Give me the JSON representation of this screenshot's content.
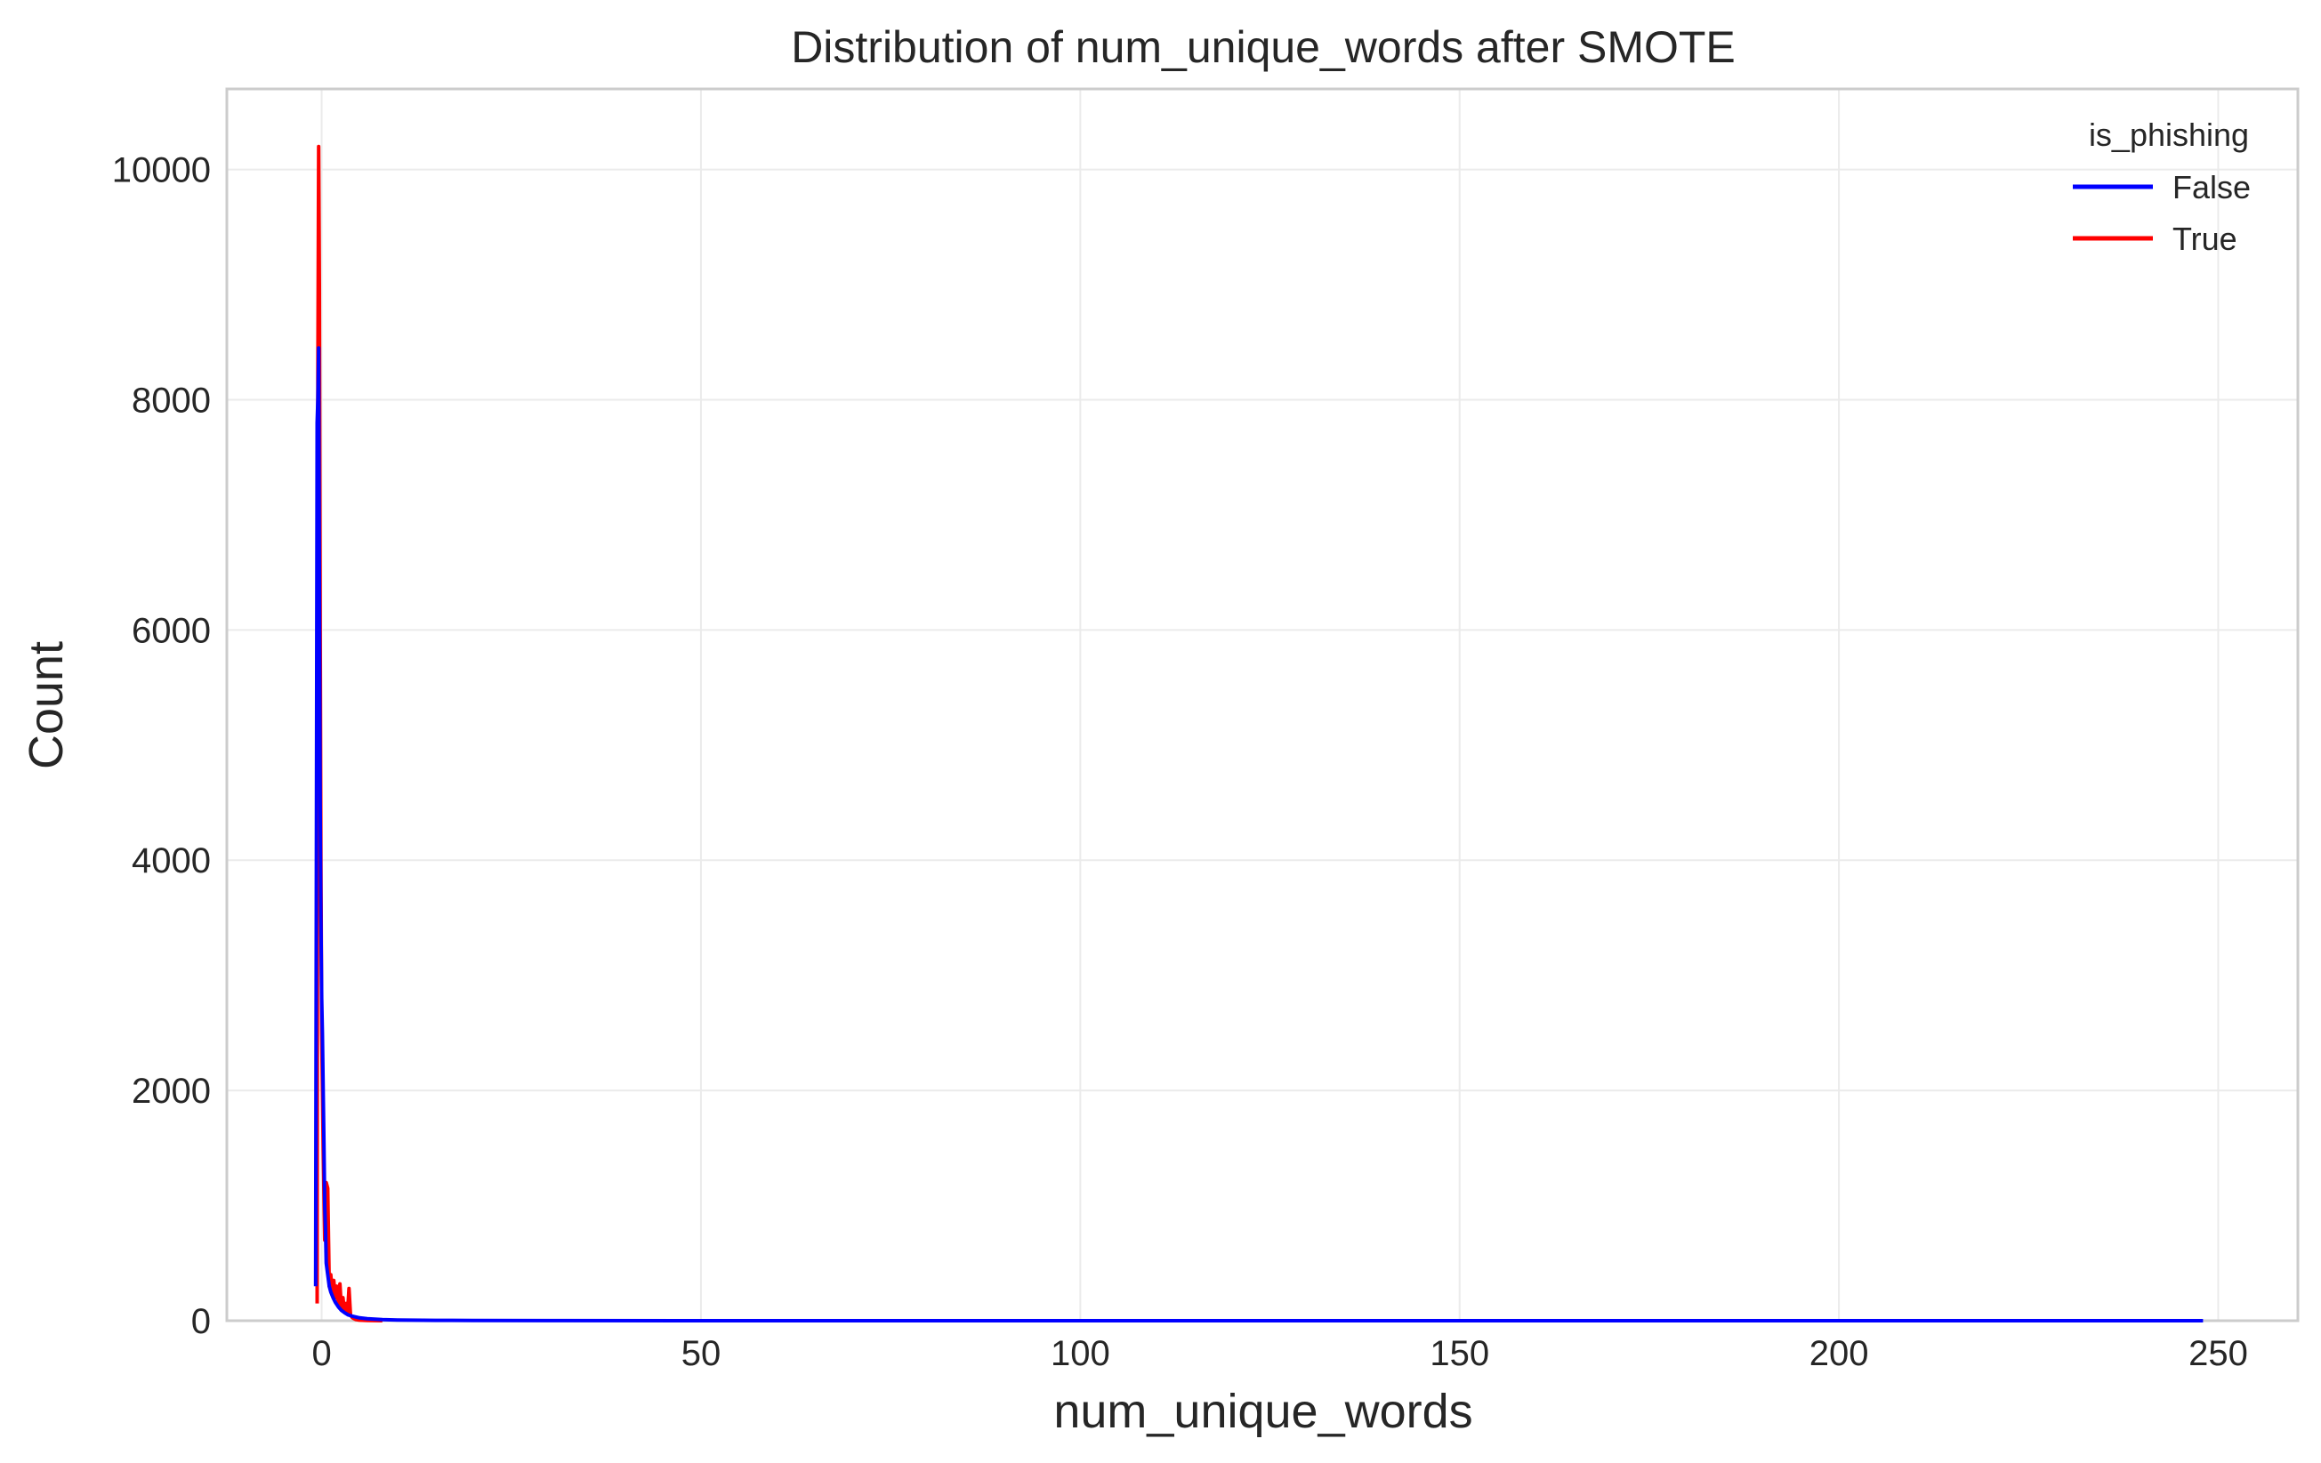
{
  "chart_data": {
    "type": "line",
    "title": "Distribution of num_unique_words after SMOTE",
    "xlabel": "num_unique_words",
    "ylabel": "Count",
    "xlim": [
      -12.5,
      260.5
    ],
    "ylim": [
      0,
      10700
    ],
    "xticks": [
      0,
      50,
      100,
      150,
      200,
      250
    ],
    "yticks": [
      0,
      2000,
      4000,
      6000,
      8000,
      10000
    ],
    "grid": true,
    "legend": {
      "title": "is_phishing",
      "position": "top-right"
    },
    "series": [
      {
        "name": "False",
        "color": "#0000ff",
        "x": [
          -0.8,
          -0.6,
          -0.5,
          -0.4,
          -0.3,
          -0.2,
          -0.1,
          0.0,
          0.1,
          0.2,
          0.3,
          0.4,
          0.5,
          0.6,
          0.8,
          1.0,
          1.2,
          1.5,
          1.8,
          2.2,
          2.6,
          3.0,
          3.5,
          4.0,
          5.0,
          6.0,
          8.0,
          10.0,
          15.0,
          20.0,
          30.0,
          50.0,
          100.0,
          150.0,
          200.0,
          248.0
        ],
        "values": [
          300,
          7800,
          8000,
          8450,
          6500,
          4500,
          3500,
          2800,
          2500,
          2000,
          1500,
          1000,
          800,
          500,
          400,
          300,
          250,
          200,
          160,
          120,
          90,
          70,
          50,
          40,
          25,
          18,
          10,
          6,
          3,
          2,
          1,
          0,
          0,
          0,
          0,
          0
        ]
      },
      {
        "name": "True",
        "color": "#ff0000",
        "x": [
          -0.6,
          -0.5,
          -0.4,
          -0.3,
          -0.2,
          -0.1,
          0.0,
          0.2,
          0.4,
          0.6,
          0.8,
          1.0,
          1.2,
          1.4,
          1.6,
          1.8,
          2.0,
          2.2,
          2.4,
          2.6,
          2.8,
          3.0,
          3.2,
          3.4,
          3.6,
          3.8,
          4.0,
          4.2,
          4.5,
          5.0,
          6.0,
          8.0
        ],
        "values": [
          150,
          8200,
          10200,
          9000,
          6000,
          4000,
          2500,
          1500,
          700,
          1200,
          1150,
          300,
          400,
          250,
          350,
          200,
          300,
          150,
          320,
          100,
          200,
          80,
          150,
          60,
          280,
          50,
          30,
          20,
          10,
          5,
          2,
          0
        ]
      }
    ]
  }
}
